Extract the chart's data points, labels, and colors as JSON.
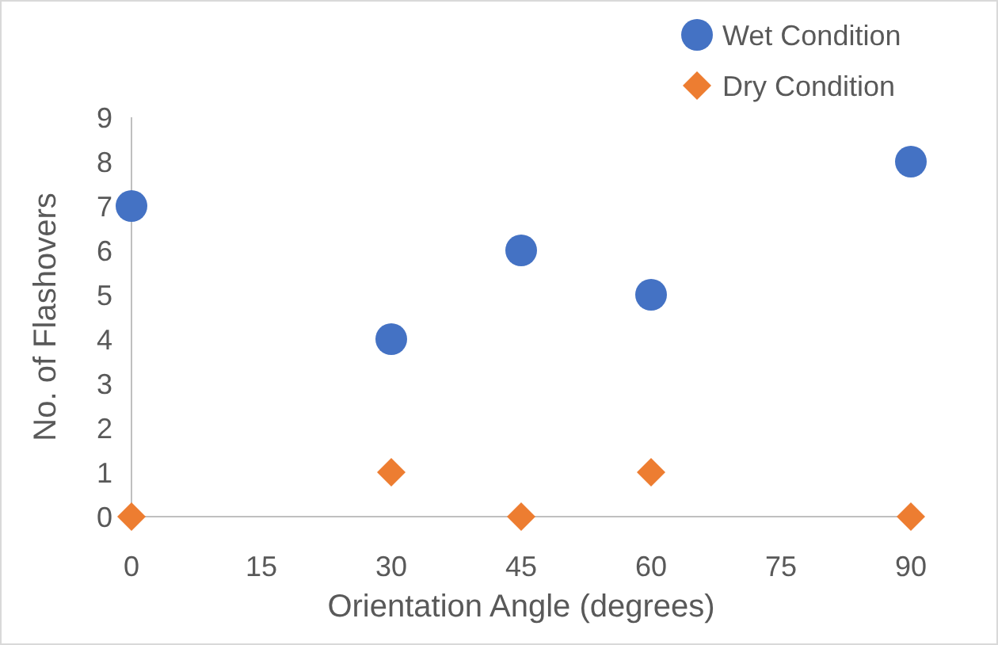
{
  "chart_data": {
    "type": "scatter",
    "xlabel": "Orientation Angle (degrees)",
    "ylabel": "No. of Flashovers",
    "xlim": [
      0,
      90
    ],
    "xticks": [
      0,
      15,
      30,
      45,
      60,
      75,
      90
    ],
    "ylim": [
      0,
      9
    ],
    "yticks": [
      0,
      1,
      2,
      3,
      4,
      5,
      6,
      7,
      8,
      9
    ],
    "grid": false,
    "legend": "top right",
    "series": [
      {
        "name": "Wet Condition",
        "color": "#4472c4",
        "marker": "circle",
        "x": [
          0,
          30,
          45,
          60,
          90
        ],
        "values": [
          7,
          4,
          6,
          5,
          8
        ]
      },
      {
        "name": "Dry Condition",
        "color": "#ed7d31",
        "marker": "diamond",
        "x": [
          0,
          30,
          45,
          60,
          90
        ],
        "values": [
          0,
          1,
          0,
          1,
          0
        ]
      }
    ]
  }
}
